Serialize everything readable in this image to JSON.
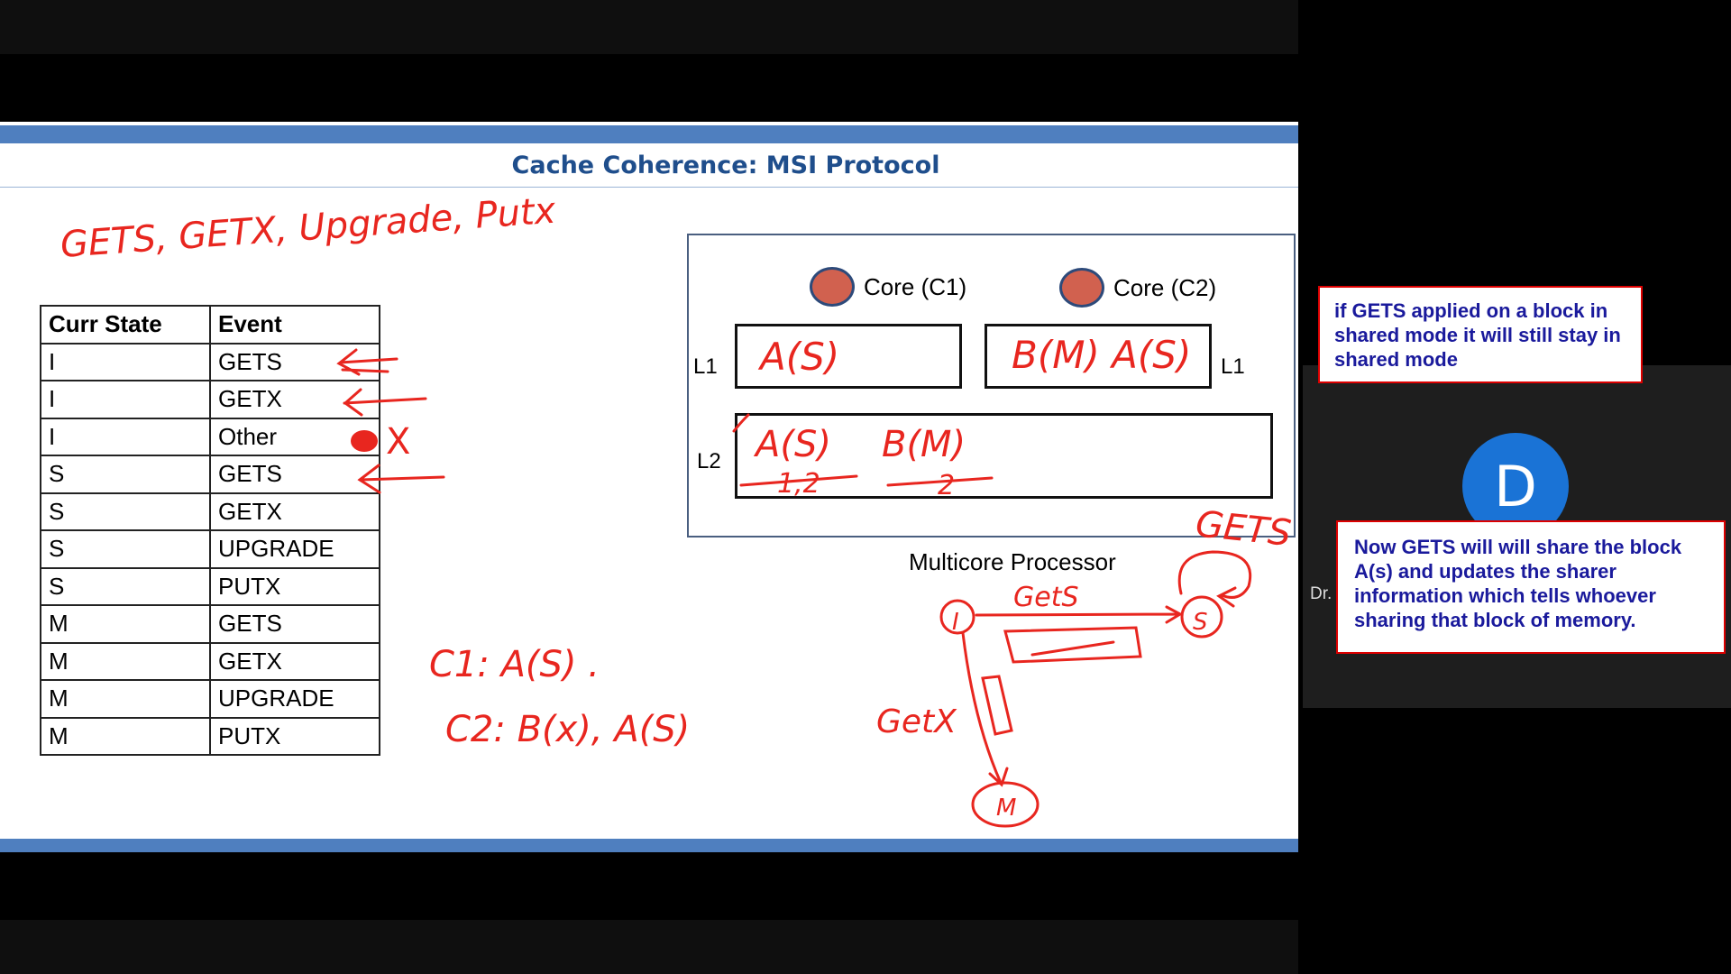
{
  "slide": {
    "title": "Cache Coherence: MSI Protocol",
    "table": {
      "headers": [
        "Curr State",
        "Event"
      ],
      "rows": [
        [
          "I",
          "GETS"
        ],
        [
          "I",
          "GETX"
        ],
        [
          "I",
          "Other"
        ],
        [
          "S",
          "GETS"
        ],
        [
          "S",
          "GETX"
        ],
        [
          "S",
          "UPGRADE"
        ],
        [
          "S",
          "PUTX"
        ],
        [
          "M",
          "GETS"
        ],
        [
          "M",
          "GETX"
        ],
        [
          "M",
          "UPGRADE"
        ],
        [
          "M",
          "PUTX"
        ]
      ]
    },
    "processor": {
      "core1": "Core (C1)",
      "core2": "Core (C2)",
      "l1_left": "L1",
      "l1_right": "L1",
      "l2": "L2",
      "label": "Multicore Processor"
    },
    "handwriting": {
      "events": "GETS, GETX, Upgrade, Putx",
      "c1_note": "C1: A(S) .",
      "c2_note": "C2: B(x), A(S)",
      "l1c1": "A(S)",
      "l1c2": "B(M)  A(S)",
      "l2_a": "A(S)",
      "l2_a_sharers": "1,2",
      "l2_b": "B(M)",
      "l2_b_sharers": "2",
      "gets_big": "GETS",
      "gets_edge": "GetS",
      "getx_edge": "GetX",
      "state_i": "I",
      "state_s": "S",
      "state_m": "M",
      "other_mark": "X"
    }
  },
  "callouts": {
    "top": "if GETS applied on a block in shared mode it will still stay in shared mode",
    "bottom": "Now GETS will will share the block A(s) and updates the sharer information which tells whoever sharing that block of memory."
  },
  "participant": {
    "initial": "D",
    "name": "Dr."
  },
  "colors": {
    "ink": "#e8261f",
    "title": "#1f4e8c",
    "slide_bar": "#4f7fbf",
    "callout_text": "#1a1a9c",
    "avatar": "#1a73d6"
  }
}
